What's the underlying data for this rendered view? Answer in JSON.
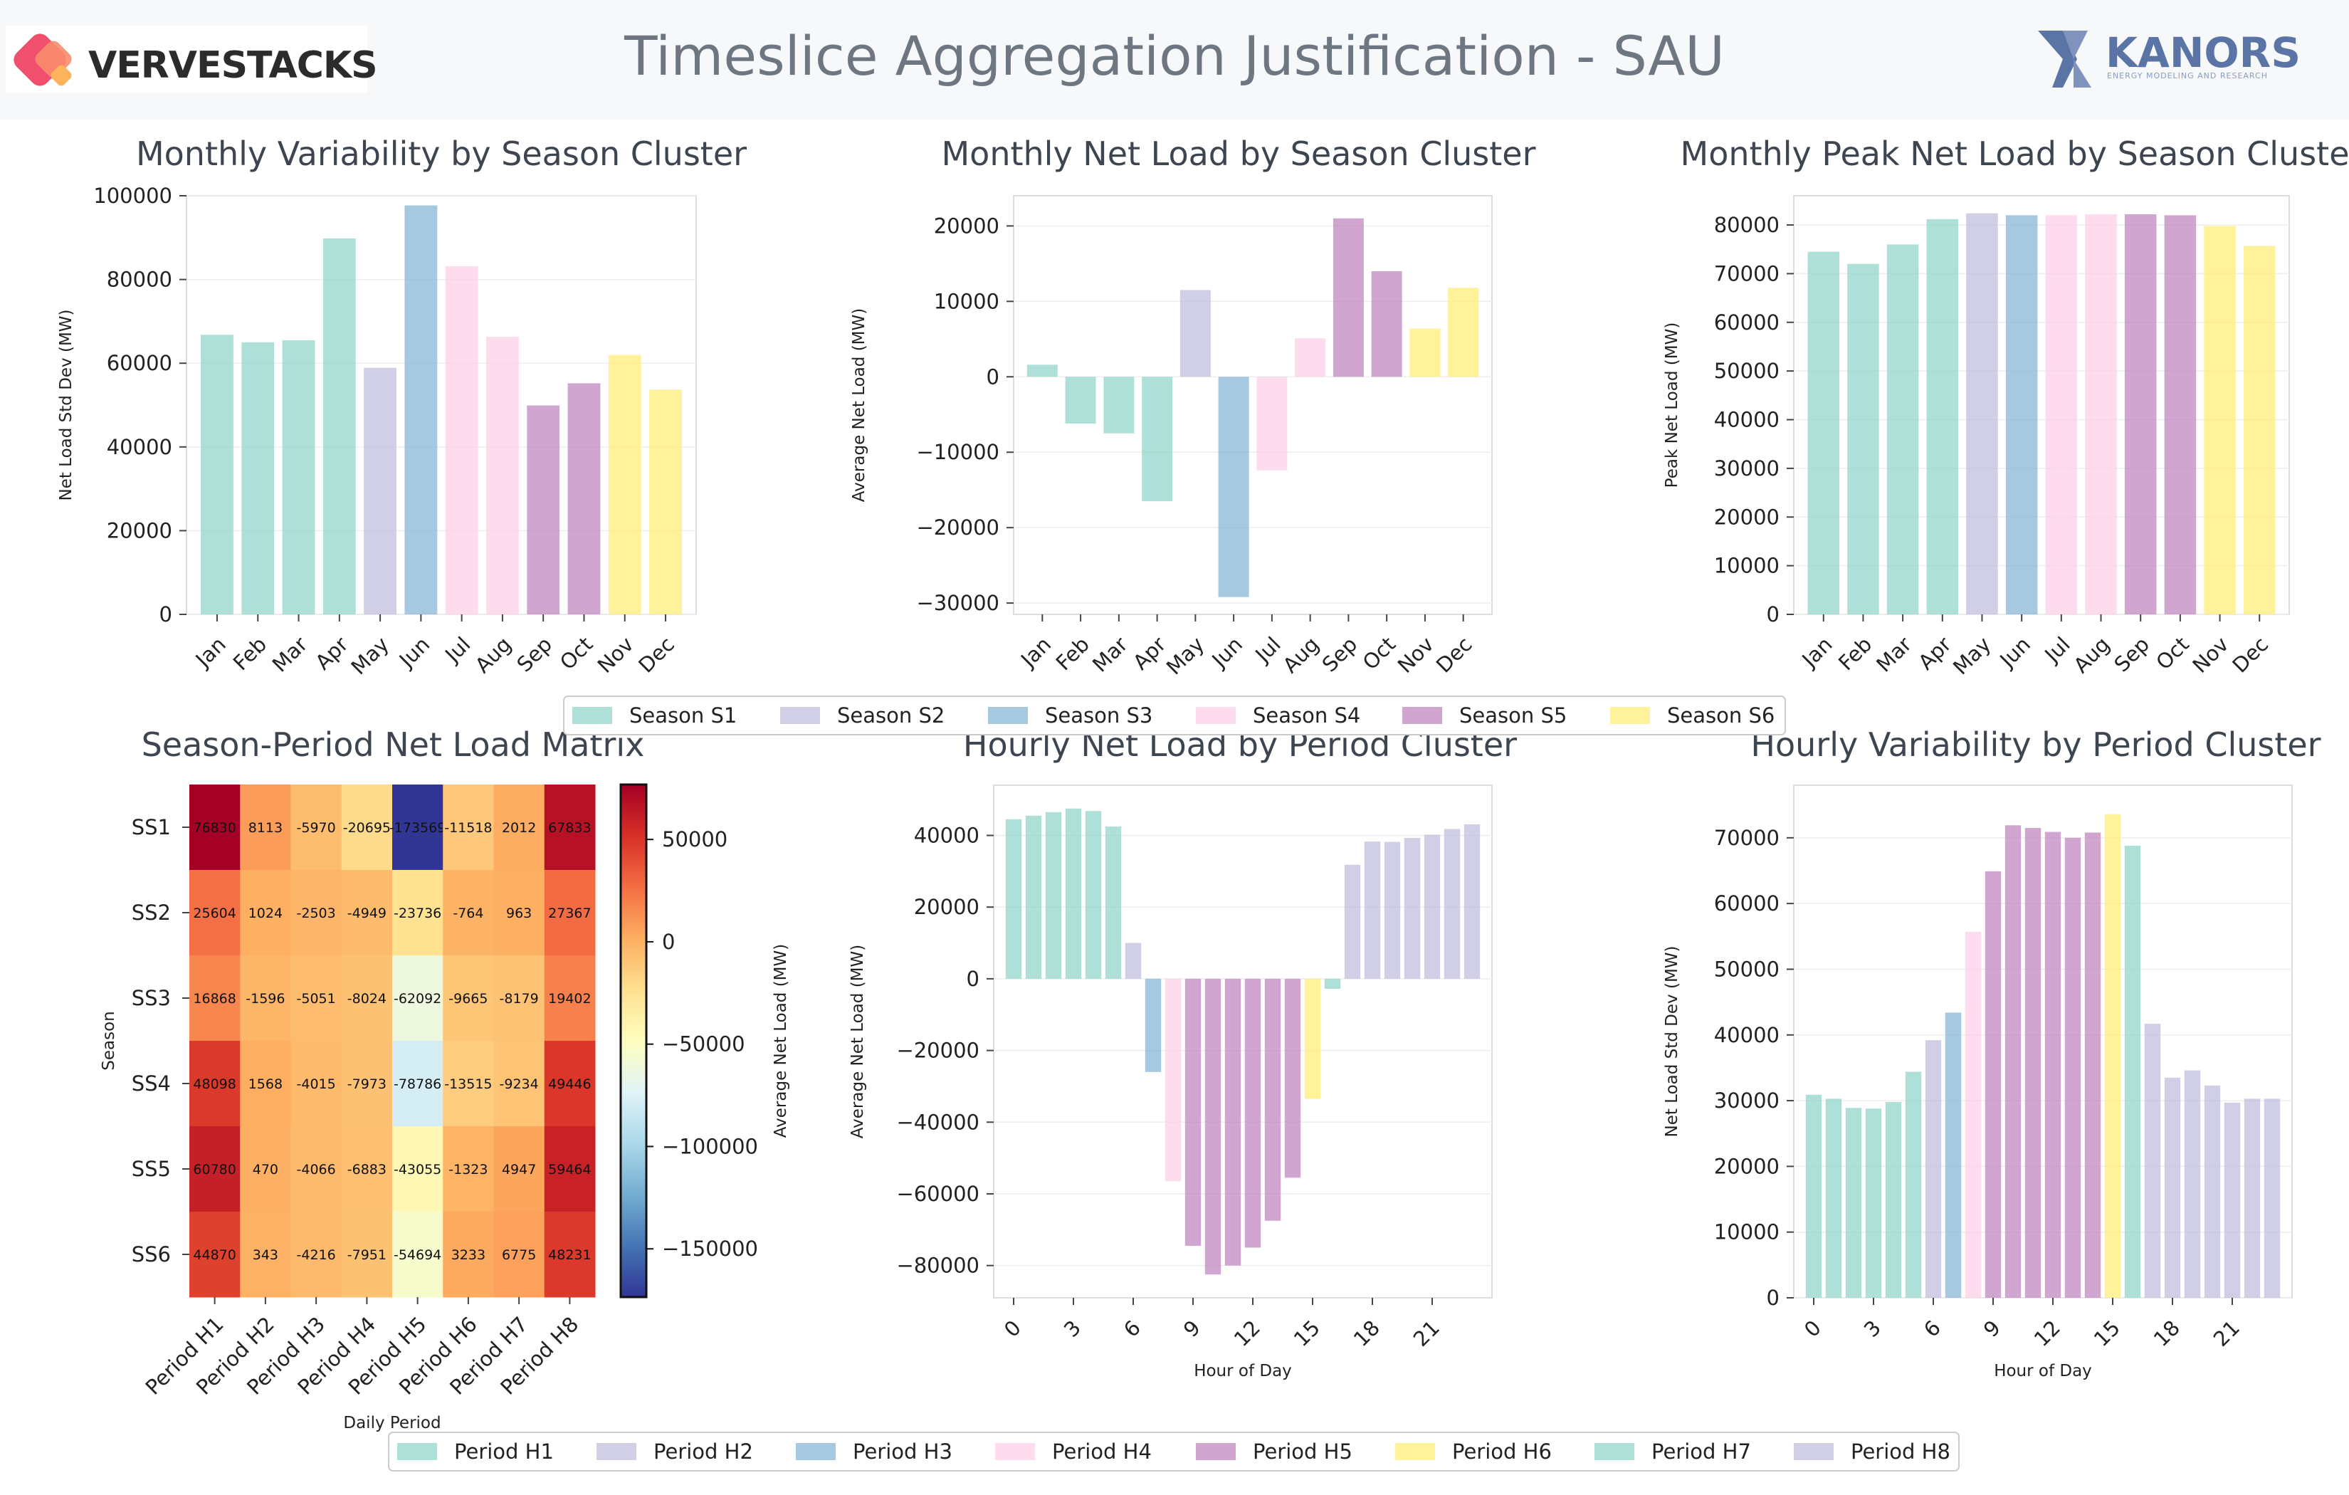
{
  "header": {
    "title": "Timeslice Aggregation Justification - SAU",
    "logo_left": "VERVESTACKS",
    "logo_right": "KANORS",
    "logo_right_sub": "ENERGY MODELING AND RESEARCH"
  },
  "legends": {
    "seasons": [
      "Season S1",
      "Season S2",
      "Season S3",
      "Season S4",
      "Season S5",
      "Season S6"
    ],
    "periods": [
      "Period H1",
      "Period H2",
      "Period H3",
      "Period H4",
      "Period H5",
      "Period H6",
      "Period H7",
      "Period H8"
    ]
  },
  "colors": {
    "season_colors": [
      "#8dd3c7",
      "#bebada",
      "#80b1d3",
      "#fccde5",
      "#bc80bd",
      "#ffed6f"
    ],
    "period_colors": [
      "#8dd3c7",
      "#bebada",
      "#80b1d3",
      "#fccde5",
      "#bc80bd",
      "#ffed6f",
      "#8dd3c7",
      "#bebada"
    ]
  },
  "chart_data": [
    {
      "id": "monthly_variability",
      "type": "bar",
      "title": "Monthly Variability by Season Cluster",
      "xlabel": "",
      "ylabel": "Net Load Std Dev (MW)",
      "categories": [
        "Jan",
        "Feb",
        "Mar",
        "Apr",
        "May",
        "Jun",
        "Jul",
        "Aug",
        "Sep",
        "Oct",
        "Nov",
        "Dec"
      ],
      "values": [
        66800,
        65000,
        65500,
        89800,
        58900,
        97700,
        83200,
        66300,
        49900,
        55200,
        62000,
        53700
      ],
      "groups": [
        0,
        0,
        0,
        0,
        1,
        2,
        3,
        3,
        4,
        4,
        5,
        5
      ],
      "ylim": [
        0,
        100000
      ],
      "yticks": [
        0,
        20000,
        40000,
        60000,
        80000,
        100000
      ]
    },
    {
      "id": "monthly_net_load",
      "type": "bar",
      "title": "Monthly Net Load by Season Cluster",
      "xlabel": "",
      "ylabel": "Average Net Load (MW)",
      "categories": [
        "Jan",
        "Feb",
        "Mar",
        "Apr",
        "May",
        "Jun",
        "Jul",
        "Aug",
        "Sep",
        "Oct",
        "Nov",
        "Dec"
      ],
      "values": [
        1600,
        -6200,
        -7500,
        -16500,
        11500,
        -29200,
        -12400,
        5100,
        21000,
        14000,
        6400,
        11800
      ],
      "groups": [
        0,
        0,
        0,
        0,
        1,
        2,
        3,
        3,
        4,
        4,
        5,
        5
      ],
      "ylim": [
        -31500,
        24000
      ],
      "yticks": [
        -30000,
        -20000,
        -10000,
        0,
        10000,
        20000
      ]
    },
    {
      "id": "monthly_peak",
      "type": "bar",
      "title": "Monthly Peak Net Load by Season Cluster",
      "xlabel": "",
      "ylabel": "Peak Net Load (MW)",
      "categories": [
        "Jan",
        "Feb",
        "Mar",
        "Apr",
        "May",
        "Jun",
        "Jul",
        "Aug",
        "Sep",
        "Oct",
        "Nov",
        "Dec"
      ],
      "values": [
        74500,
        72000,
        76000,
        81200,
        82400,
        82000,
        82000,
        82200,
        82200,
        82000,
        79800,
        75700
      ],
      "groups": [
        0,
        0,
        0,
        0,
        1,
        2,
        3,
        3,
        4,
        4,
        5,
        5
      ],
      "ylim": [
        0,
        86000
      ],
      "yticks": [
        0,
        10000,
        20000,
        30000,
        40000,
        50000,
        60000,
        70000,
        80000
      ]
    },
    {
      "id": "season_period_matrix",
      "type": "heatmap",
      "title": "Season-Period Net Load Matrix",
      "xlabel": "Daily Period",
      "ylabel": "Season",
      "colorbar_label": "Average Net Load (MW)",
      "rows": [
        "SS1",
        "SS2",
        "SS3",
        "SS4",
        "SS5",
        "SS6"
      ],
      "cols": [
        "Period H1",
        "Period H2",
        "Period H3",
        "Period H4",
        "Period H5",
        "Period H6",
        "Period H7",
        "Period H8"
      ],
      "values": [
        [
          76830,
          8113,
          -5970,
          -20695,
          -173569,
          -11518,
          2012,
          67833
        ],
        [
          25604,
          1024,
          -2503,
          -4949,
          -23736,
          -764,
          963,
          27367
        ],
        [
          16868,
          -1596,
          -5051,
          -8024,
          -62092,
          -9665,
          -8179,
          19402
        ],
        [
          48098,
          1568,
          -4015,
          -7973,
          -78786,
          -13515,
          -9234,
          49446
        ],
        [
          60780,
          470,
          -4066,
          -6883,
          -43055,
          -1323,
          4947,
          59464
        ],
        [
          44870,
          343,
          -4216,
          -7951,
          -54694,
          3233,
          6775,
          48231
        ]
      ],
      "vmin": -173569,
      "vmax": 76830,
      "colorbar_ticks": [
        50000,
        0,
        -50000,
        -100000,
        -150000
      ]
    },
    {
      "id": "hourly_net_load",
      "type": "bar",
      "title": "Hourly Net Load by Period Cluster",
      "xlabel": "Hour of Day",
      "ylabel": "Average Net Load (MW)",
      "x": [
        0,
        1,
        2,
        3,
        4,
        5,
        6,
        7,
        8,
        9,
        10,
        11,
        12,
        13,
        14,
        15,
        16,
        17,
        18,
        19,
        20,
        21,
        22,
        23
      ],
      "values": [
        44500,
        45500,
        46500,
        47500,
        46800,
        42500,
        10000,
        -26000,
        -56500,
        -74500,
        -82500,
        -80000,
        -75000,
        -67500,
        -55500,
        -33500,
        -2800,
        31800,
        38300,
        38200,
        39300,
        40200,
        41800,
        43100
      ],
      "groups": [
        0,
        0,
        0,
        0,
        0,
        0,
        1,
        2,
        3,
        4,
        4,
        4,
        4,
        4,
        4,
        5,
        6,
        7,
        7,
        7,
        7,
        7,
        7,
        7
      ],
      "ylim": [
        -89000,
        54000
      ],
      "xticks": [
        0,
        3,
        6,
        9,
        12,
        15,
        18,
        21
      ],
      "yticks": [
        -80000,
        -60000,
        -40000,
        -20000,
        0,
        20000,
        40000
      ]
    },
    {
      "id": "hourly_variability",
      "type": "bar",
      "title": "Hourly Variability by Period Cluster",
      "xlabel": "Hour of Day",
      "ylabel": "Net Load Std Dev (MW)",
      "x": [
        0,
        1,
        2,
        3,
        4,
        5,
        6,
        7,
        8,
        9,
        10,
        11,
        12,
        13,
        14,
        15,
        16,
        17,
        18,
        19,
        20,
        21,
        22,
        23
      ],
      "values": [
        30900,
        30300,
        28900,
        28800,
        29800,
        34400,
        39200,
        43400,
        55700,
        64900,
        71900,
        71500,
        70900,
        70000,
        70800,
        73600,
        68800,
        41700,
        33500,
        34600,
        32300,
        29700,
        30300,
        30300
      ],
      "groups": [
        0,
        0,
        0,
        0,
        0,
        0,
        1,
        2,
        3,
        4,
        4,
        4,
        4,
        4,
        4,
        5,
        6,
        7,
        7,
        7,
        7,
        7,
        7,
        7
      ],
      "ylim": [
        0,
        78000
      ],
      "xticks": [
        0,
        3,
        6,
        9,
        12,
        15,
        18,
        21
      ],
      "yticks": [
        0,
        10000,
        20000,
        30000,
        40000,
        50000,
        60000,
        70000
      ]
    }
  ]
}
